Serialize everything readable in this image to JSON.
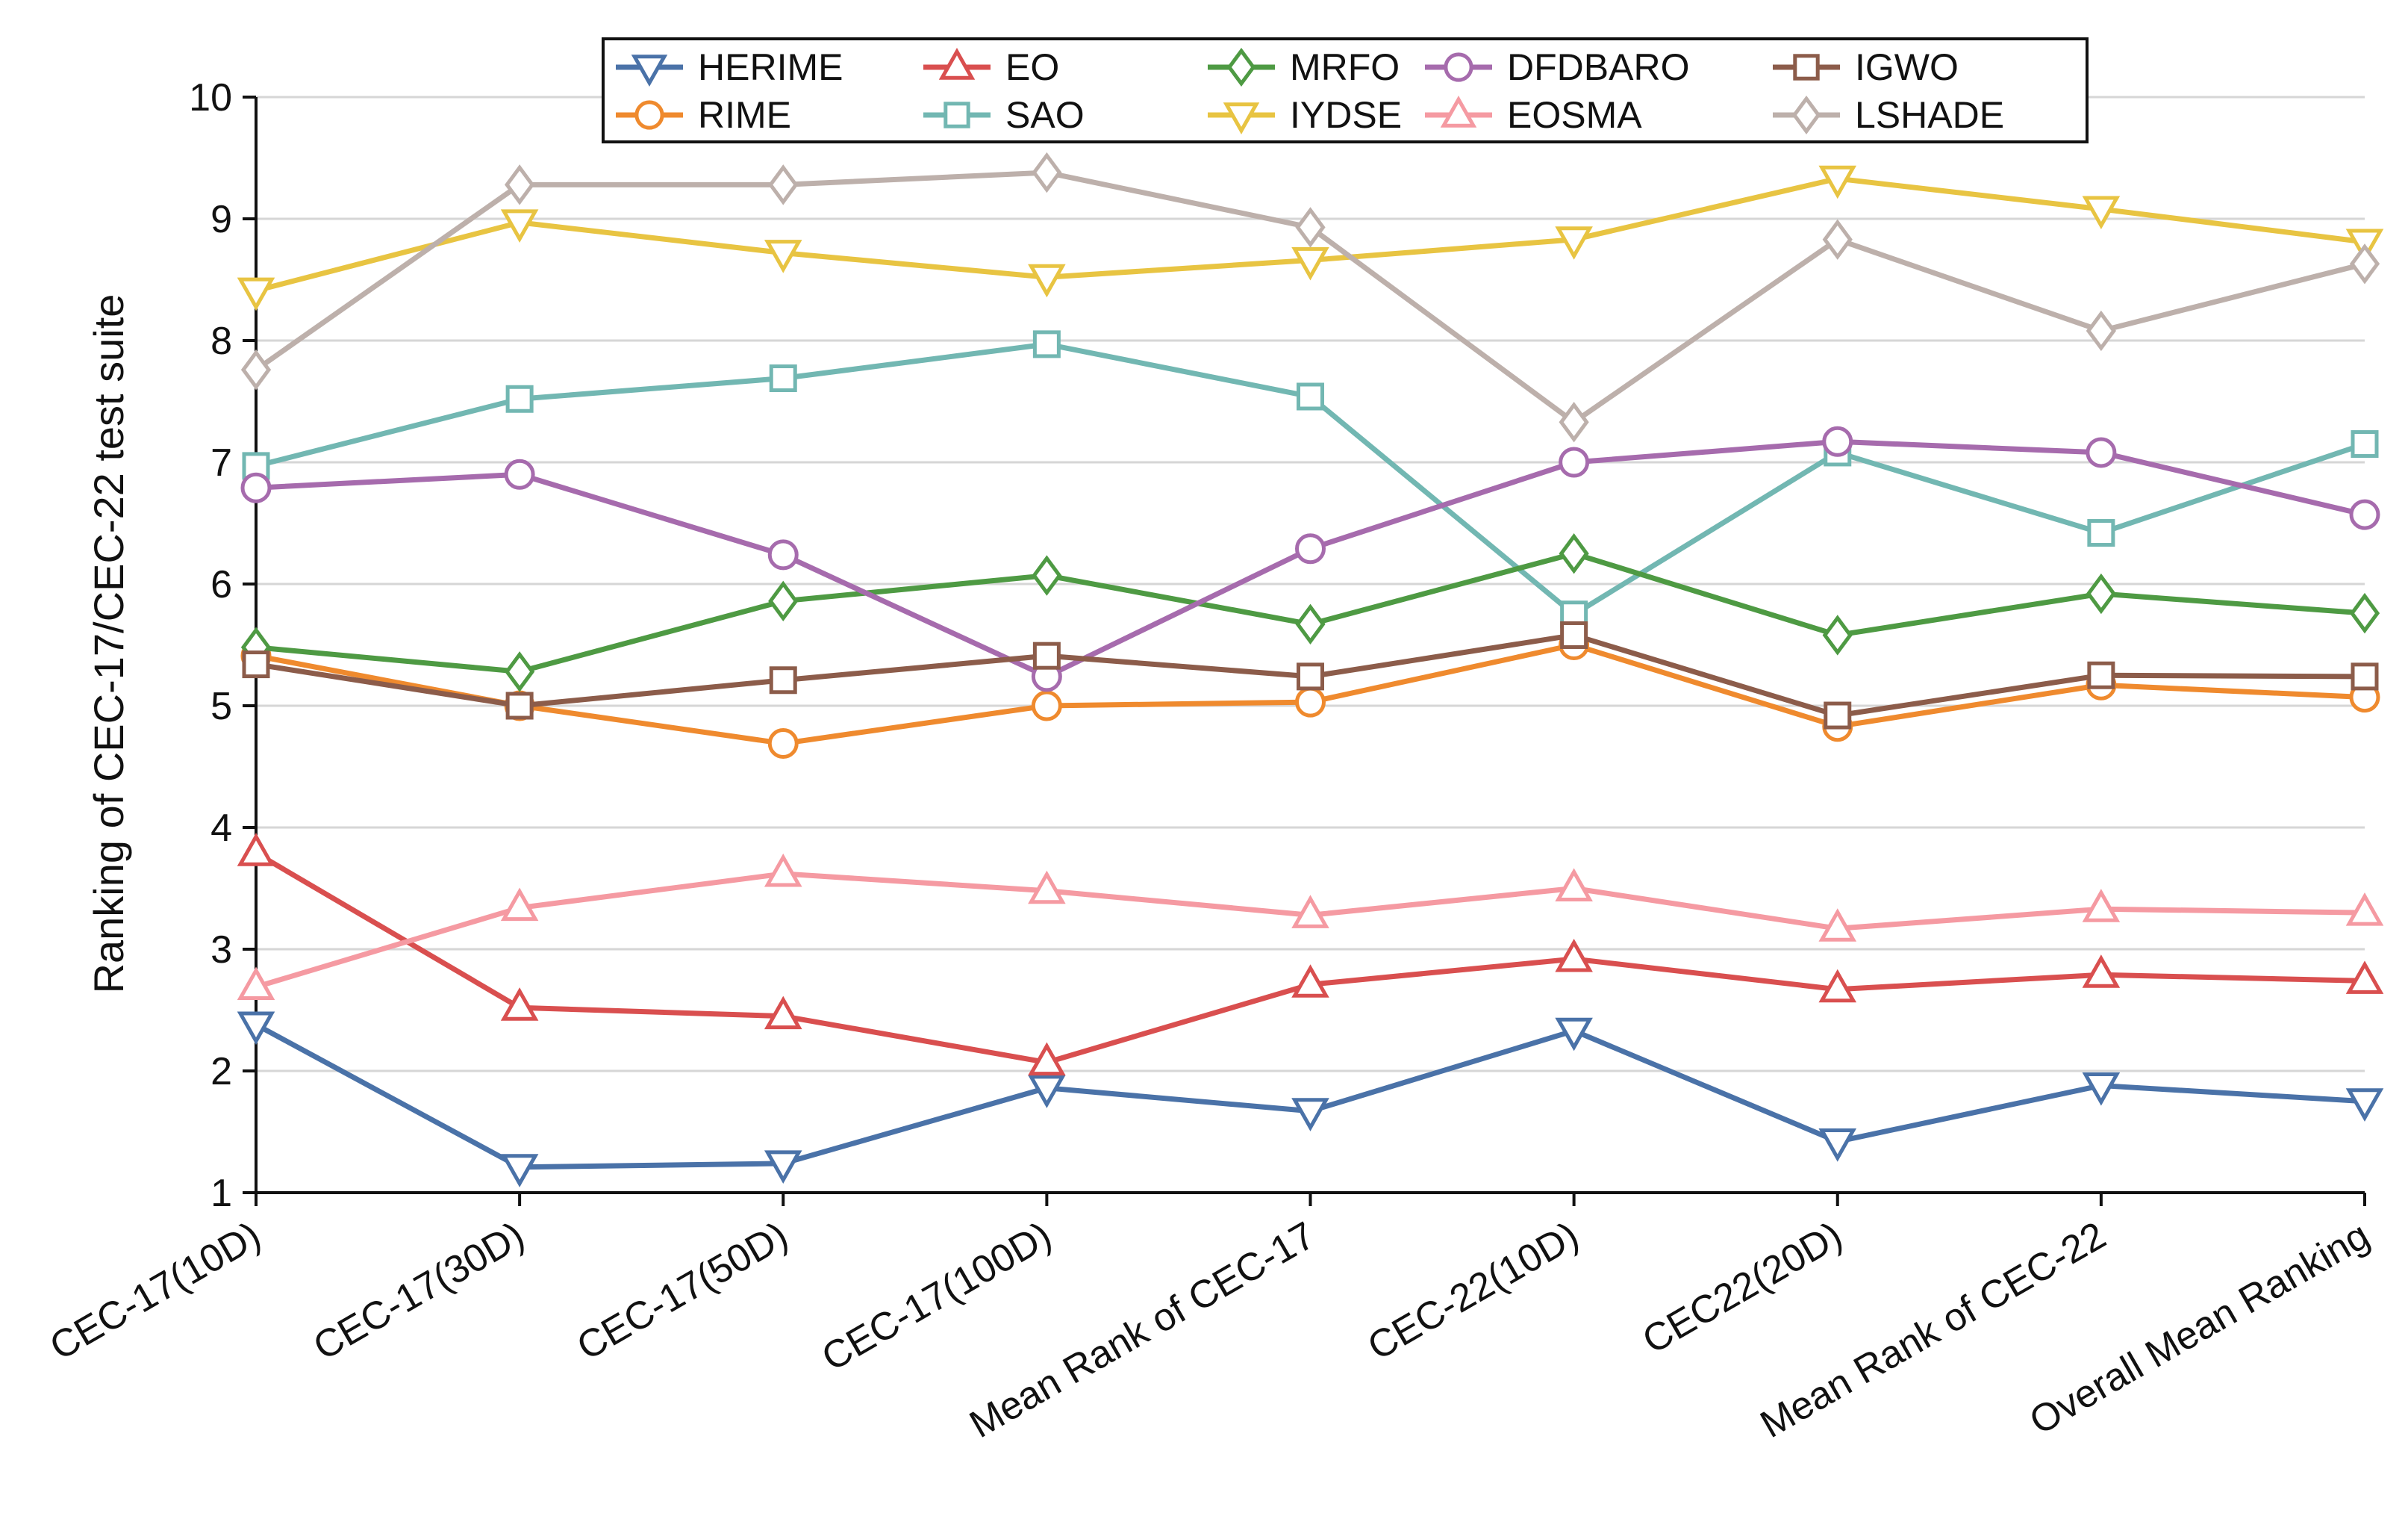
{
  "chart_data": {
    "type": "line",
    "title": "",
    "xlabel": "",
    "ylabel": "Ranking of CEC-17/CEC-22 test suite",
    "ylim": [
      1,
      10
    ],
    "yticks": [
      "1",
      "2",
      "3",
      "4",
      "5",
      "6",
      "7",
      "8",
      "9",
      "10"
    ],
    "grid": "horizontal",
    "legend_position": "top-center",
    "categories": [
      "CEC-17(10D)",
      "CEC-17(30D)",
      "CEC-17(50D)",
      "CEC-17(100D)",
      "Mean Rank of CEC-17",
      "CEC-22(10D)",
      "CEC22(20D)",
      "Mean Rank of CEC-22",
      "Overall Mean Ranking"
    ],
    "series": [
      {
        "name": "HERIME",
        "color": "#4a72a8",
        "marker": "triangle-down",
        "values": [
          2.38,
          1.21,
          1.24,
          1.86,
          1.67,
          2.33,
          1.42,
          1.88,
          1.75
        ]
      },
      {
        "name": "RIME",
        "color": "#ef8a2e",
        "marker": "circle",
        "values": [
          5.41,
          5.0,
          4.69,
          5.0,
          5.03,
          5.5,
          4.83,
          5.17,
          5.07
        ]
      },
      {
        "name": "EO",
        "color": "#d94f4f",
        "marker": "triangle-up",
        "values": [
          3.79,
          2.52,
          2.45,
          2.07,
          2.71,
          2.92,
          2.67,
          2.79,
          2.74
        ]
      },
      {
        "name": "SAO",
        "color": "#72b7b2",
        "marker": "square",
        "values": [
          6.97,
          7.52,
          7.69,
          7.97,
          7.54,
          5.75,
          7.08,
          6.42,
          7.15
        ]
      },
      {
        "name": "MRFO",
        "color": "#4e9a43",
        "marker": "diamond",
        "values": [
          5.48,
          5.28,
          5.86,
          6.07,
          5.67,
          6.25,
          5.58,
          5.92,
          5.76
        ]
      },
      {
        "name": "IYDSE",
        "color": "#e8c442",
        "marker": "triangle-down",
        "values": [
          8.41,
          8.97,
          8.72,
          8.52,
          8.66,
          8.83,
          9.33,
          9.08,
          8.81
        ]
      },
      {
        "name": "DFDBARO",
        "color": "#a66bad",
        "marker": "circle",
        "values": [
          6.79,
          6.9,
          6.24,
          5.24,
          6.29,
          7.0,
          7.17,
          7.08,
          6.57
        ]
      },
      {
        "name": "EOSMA",
        "color": "#f59aa2",
        "marker": "triangle-up",
        "values": [
          2.69,
          3.34,
          3.62,
          3.48,
          3.28,
          3.5,
          3.17,
          3.33,
          3.3
        ]
      },
      {
        "name": "IGWO",
        "color": "#8c5c4a",
        "marker": "square",
        "values": [
          5.34,
          5.0,
          5.21,
          5.41,
          5.24,
          5.58,
          4.92,
          5.25,
          5.24
        ]
      },
      {
        "name": "LSHADE",
        "color": "#bdb0ab",
        "marker": "diamond",
        "values": [
          7.76,
          9.28,
          9.28,
          9.38,
          8.93,
          7.33,
          8.83,
          8.08,
          8.63
        ]
      }
    ]
  }
}
